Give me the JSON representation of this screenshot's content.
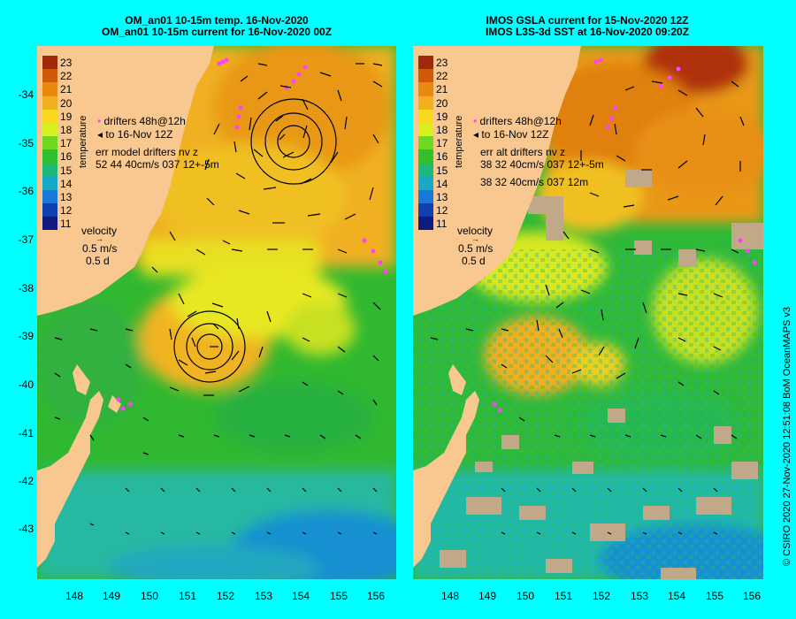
{
  "left_panel": {
    "title_line1": "OM_an01 10-15m temp. 16-Nov-2020",
    "title_line2": "OM_an01 10-15m current for 16-Nov-2020 00Z",
    "legend_drifters": "drifters 48h@12h",
    "legend_to": "to 16-Nov 12Z",
    "err_label": "err model drifters nv z",
    "err_stats": "52 44 40cm/s 037 12+-5m",
    "velocity_label": "velocity",
    "velocity_scale": "0.5 m/s",
    "velocity_time": "0.5 d",
    "colorbar_title": "temperature"
  },
  "right_panel": {
    "title_line1": "IMOS GSLA current for 15-Nov-2020 12Z",
    "title_line2": "IMOS L3S-3d SST at 16-Nov-2020 09:20Z",
    "legend_drifters": "drifters 48h@12h",
    "legend_to": "to 16-Nov 12Z",
    "err_label": "err alt drifters nv z",
    "err_stats": "38 32 40cm/s 037 12+-5m",
    "err_stats2": "38 32 40cm/s 037 12m",
    "velocity_label": "velocity",
    "velocity_scale": "0.5 m/s",
    "velocity_time": "0.5 d",
    "colorbar_title": "temperature"
  },
  "y_ticks": [
    "-34",
    "-35",
    "-36",
    "-37",
    "-38",
    "-39",
    "-40",
    "-41",
    "-42",
    "-43"
  ],
  "x_ticks": [
    "148",
    "149",
    "150",
    "151",
    "152",
    "153",
    "154",
    "155",
    "156"
  ],
  "colorbar_ticks": [
    "23",
    "22",
    "21",
    "20",
    "19",
    "18",
    "17",
    "16",
    "15",
    "14",
    "13",
    "12",
    "11"
  ],
  "colorbar_colors": [
    "#a0280a",
    "#d05a0a",
    "#e88a10",
    "#f0b020",
    "#f8d820",
    "#d8f020",
    "#70d820",
    "#30c030",
    "#20b878",
    "#18a8c8",
    "#1878d8",
    "#1040b0",
    "#101a80"
  ],
  "colors": {
    "background": "#00ffff",
    "land": "#f8c890",
    "ocean_warm": "#f0a818",
    "ocean_mid": "#e8e020",
    "ocean_cool": "#30b830",
    "drifter": "#ff40ff",
    "cloud": "#c0a888"
  },
  "credit": "© CSIRO 2020  27-Nov-2020 12:51:08 BoM OceanMAPS v3"
}
